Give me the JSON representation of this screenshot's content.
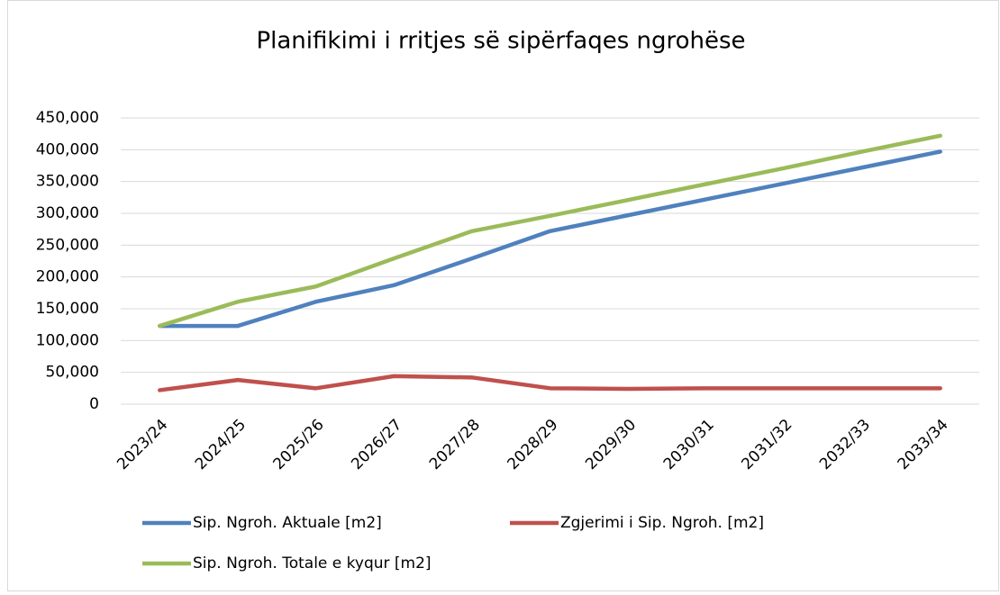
{
  "chart_data": {
    "type": "line",
    "title": "Planifikimi i rritjes së sipërfaqes ngrohëse",
    "categories": [
      "2023/24",
      "2024/25",
      "2025/26",
      "2026/27",
      "2027/28",
      "2028/29",
      "2029/30",
      "2030/31",
      "2031/32",
      "2032/33",
      "2033/34"
    ],
    "series": [
      {
        "name": "Sip. Ngroh. Aktuale [m2]",
        "color": "#4f81bd",
        "values": [
          123000,
          123000,
          161000,
          187000,
          229000,
          272000,
          297000,
          322000,
          347000,
          372000,
          397000
        ]
      },
      {
        "name": "Zgjerimi i Sip. Ngroh. [m2]",
        "color": "#c0504d",
        "values": [
          22000,
          38000,
          25000,
          44000,
          42000,
          25000,
          24000,
          25000,
          25000,
          25000,
          25000
        ]
      },
      {
        "name": "Sip. Ngroh. Totale e kyqur [m2]",
        "color": "#9bbb59",
        "values": [
          123000,
          161000,
          185000,
          229000,
          272000,
          296000,
          321000,
          346000,
          371000,
          397000,
          422000
        ]
      }
    ],
    "ylim": [
      0,
      450000
    ],
    "yticks": [
      0,
      {
        "value": 50000,
        "label": "50,000"
      },
      {
        "value": 100000,
        "label": "100,000"
      },
      {
        "value": 150000,
        "label": "150,000"
      },
      {
        "value": 200000,
        "label": "200,000"
      },
      {
        "value": 250000,
        "label": "250,000"
      },
      {
        "value": 300000,
        "label": "300,000"
      },
      {
        "value": 350000,
        "label": "350,000"
      },
      {
        "value": 400000,
        "label": "400,000"
      },
      {
        "value": 450000,
        "label": "450,000"
      }
    ],
    "grid": true,
    "legend": "bottom"
  }
}
